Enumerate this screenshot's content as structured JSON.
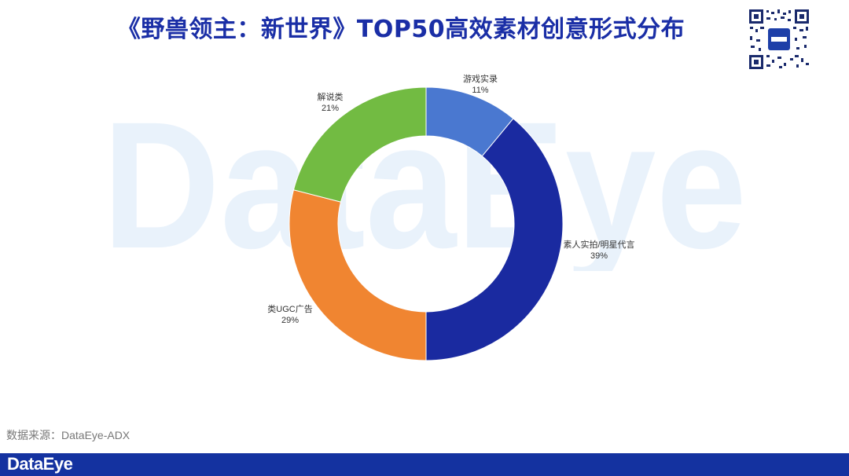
{
  "title": "《野兽领主：新世界》TOP50高效素材创意形式分布",
  "source": "数据来源：DataEye-ADX",
  "footer_logo": "DataEye",
  "watermark": "DataEye",
  "chart_data": {
    "type": "pie",
    "donut": true,
    "title": "《野兽领主：新世界》TOP50高效素材创意形式分布",
    "slices": [
      {
        "label": "游戏实录",
        "value": 11,
        "value_label": "11%",
        "color": "#4a78d0"
      },
      {
        "label": "素人实拍/明星代言",
        "value": 39,
        "value_label": "39%",
        "color": "#1a2aa0"
      },
      {
        "label": "类UGC广告",
        "value": 29,
        "value_label": "29%",
        "color": "#f08531"
      },
      {
        "label": "解说类",
        "value": 21,
        "value_label": "21%",
        "color": "#72bb42"
      }
    ]
  }
}
